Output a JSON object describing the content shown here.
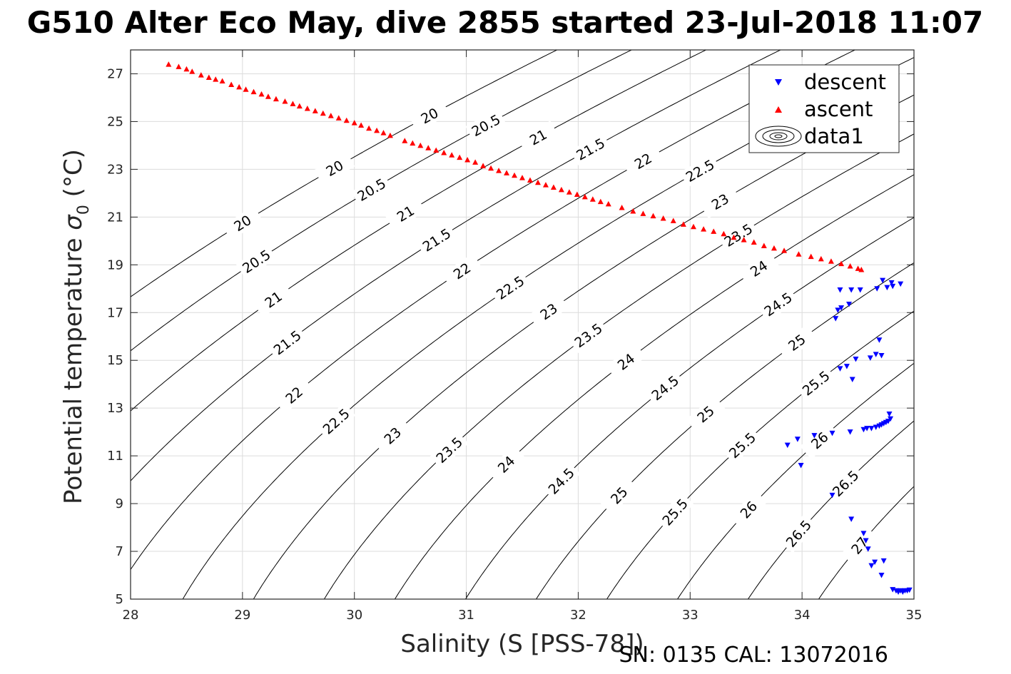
{
  "chart_data": {
    "type": "scatter",
    "title": "G510 Alter Eco May, dive 2855 started 23-Jul-2018 11:07",
    "xlabel": "Salinity (S [PSS-78])",
    "ylabel_main": "Potential temperature ",
    "ylabel_sigma": "σ",
    "ylabel_sub": "0",
    "ylabel_unit": " (°C)",
    "footer": "SN: 0135  CAL: 13072016",
    "xlim": [
      28,
      35
    ],
    "ylim": [
      5,
      28
    ],
    "xticks": [
      28,
      29,
      30,
      31,
      32,
      33,
      34,
      35
    ],
    "yticks": [
      5,
      7,
      9,
      11,
      13,
      15,
      17,
      19,
      21,
      23,
      25,
      27
    ],
    "grid": true,
    "legend": {
      "position": "top-right",
      "entries": [
        "descent",
        "ascent",
        "data1"
      ]
    },
    "contours": {
      "levels": [
        20,
        20.5,
        21,
        21.5,
        22,
        22.5,
        23,
        23.5,
        24,
        24.5,
        25,
        25.5,
        26,
        26.5,
        27
      ],
      "color": "#000000"
    },
    "series": [
      {
        "name": "ascent",
        "marker": "triangle-up",
        "color": "#ff0000",
        "points": [
          [
            28.34,
            27.4
          ],
          [
            28.43,
            27.3
          ],
          [
            28.5,
            27.2
          ],
          [
            28.55,
            27.1
          ],
          [
            28.63,
            26.95
          ],
          [
            28.7,
            26.85
          ],
          [
            28.76,
            26.77
          ],
          [
            28.82,
            26.7
          ],
          [
            28.9,
            26.55
          ],
          [
            28.97,
            26.45
          ],
          [
            29.03,
            26.35
          ],
          [
            29.1,
            26.25
          ],
          [
            29.17,
            26.15
          ],
          [
            29.23,
            26.05
          ],
          [
            29.3,
            25.95
          ],
          [
            29.38,
            25.85
          ],
          [
            29.45,
            25.75
          ],
          [
            29.51,
            25.65
          ],
          [
            29.58,
            25.55
          ],
          [
            29.65,
            25.45
          ],
          [
            29.72,
            25.35
          ],
          [
            29.79,
            25.25
          ],
          [
            29.86,
            25.15
          ],
          [
            29.93,
            25.05
          ],
          [
            30.0,
            24.95
          ],
          [
            30.06,
            24.85
          ],
          [
            30.13,
            24.72
          ],
          [
            30.2,
            24.63
          ],
          [
            30.26,
            24.53
          ],
          [
            30.32,
            24.42
          ],
          [
            30.45,
            24.2
          ],
          [
            30.52,
            24.1
          ],
          [
            30.59,
            24.0
          ],
          [
            30.66,
            23.9
          ],
          [
            30.73,
            23.8
          ],
          [
            30.8,
            23.7
          ],
          [
            30.87,
            23.6
          ],
          [
            30.94,
            23.5
          ],
          [
            31.01,
            23.4
          ],
          [
            31.08,
            23.3
          ],
          [
            31.15,
            23.15
          ],
          [
            31.22,
            23.05
          ],
          [
            31.29,
            22.95
          ],
          [
            31.36,
            22.85
          ],
          [
            31.43,
            22.75
          ],
          [
            31.5,
            22.65
          ],
          [
            31.57,
            22.55
          ],
          [
            31.64,
            22.45
          ],
          [
            31.71,
            22.35
          ],
          [
            31.78,
            22.25
          ],
          [
            31.85,
            22.15
          ],
          [
            31.92,
            22.05
          ],
          [
            31.99,
            21.95
          ],
          [
            32.06,
            21.85
          ],
          [
            32.13,
            21.75
          ],
          [
            32.2,
            21.65
          ],
          [
            32.27,
            21.55
          ],
          [
            32.39,
            21.4
          ],
          [
            32.49,
            21.25
          ],
          [
            32.58,
            21.15
          ],
          [
            32.67,
            21.05
          ],
          [
            32.76,
            20.95
          ],
          [
            32.85,
            20.85
          ],
          [
            32.94,
            20.7
          ],
          [
            33.03,
            20.6
          ],
          [
            33.12,
            20.5
          ],
          [
            33.21,
            20.4
          ],
          [
            33.3,
            20.3
          ],
          [
            33.39,
            20.15
          ],
          [
            33.48,
            20.05
          ],
          [
            33.57,
            19.95
          ],
          [
            33.66,
            19.8
          ],
          [
            33.75,
            19.7
          ],
          [
            33.84,
            19.6
          ],
          [
            33.97,
            19.45
          ],
          [
            34.08,
            19.35
          ],
          [
            34.17,
            19.25
          ],
          [
            34.26,
            19.15
          ],
          [
            34.35,
            19.05
          ],
          [
            34.43,
            18.95
          ],
          [
            34.5,
            18.85
          ],
          [
            34.53,
            18.8
          ]
        ]
      },
      {
        "name": "descent",
        "marker": "triangle-down",
        "color": "#0000ff",
        "points": [
          [
            34.34,
            17.95
          ],
          [
            34.44,
            17.95
          ],
          [
            34.52,
            17.95
          ],
          [
            34.72,
            18.35
          ],
          [
            34.8,
            18.25
          ],
          [
            34.88,
            18.2
          ],
          [
            34.76,
            18.05
          ],
          [
            34.81,
            18.1
          ],
          [
            34.67,
            18.0
          ],
          [
            34.32,
            17.1
          ],
          [
            34.35,
            17.2
          ],
          [
            34.42,
            17.35
          ],
          [
            34.3,
            16.75
          ],
          [
            34.69,
            15.85
          ],
          [
            34.66,
            15.25
          ],
          [
            34.71,
            15.2
          ],
          [
            34.61,
            15.1
          ],
          [
            34.48,
            15.05
          ],
          [
            34.34,
            14.65
          ],
          [
            34.4,
            14.75
          ],
          [
            34.45,
            14.2
          ],
          [
            34.78,
            12.75
          ],
          [
            34.79,
            12.55
          ],
          [
            34.77,
            12.45
          ],
          [
            34.75,
            12.4
          ],
          [
            34.73,
            12.35
          ],
          [
            34.71,
            12.3
          ],
          [
            34.69,
            12.25
          ],
          [
            34.66,
            12.2
          ],
          [
            34.62,
            12.15
          ],
          [
            34.58,
            12.15
          ],
          [
            34.55,
            12.1
          ],
          [
            34.43,
            12.0
          ],
          [
            34.27,
            11.95
          ],
          [
            34.11,
            11.85
          ],
          [
            33.96,
            11.7
          ],
          [
            33.87,
            11.45
          ],
          [
            33.99,
            10.6
          ],
          [
            34.27,
            9.35
          ],
          [
            34.44,
            8.35
          ],
          [
            34.55,
            7.75
          ],
          [
            34.57,
            7.45
          ],
          [
            34.59,
            7.1
          ],
          [
            34.62,
            6.4
          ],
          [
            34.65,
            6.55
          ],
          [
            34.73,
            6.6
          ],
          [
            34.71,
            6.0
          ],
          [
            34.81,
            5.4
          ],
          [
            34.84,
            5.35
          ],
          [
            34.86,
            5.3
          ],
          [
            34.88,
            5.35
          ],
          [
            34.9,
            5.3
          ],
          [
            34.92,
            5.35
          ],
          [
            34.94,
            5.35
          ],
          [
            34.96,
            5.38
          ]
        ]
      }
    ]
  }
}
